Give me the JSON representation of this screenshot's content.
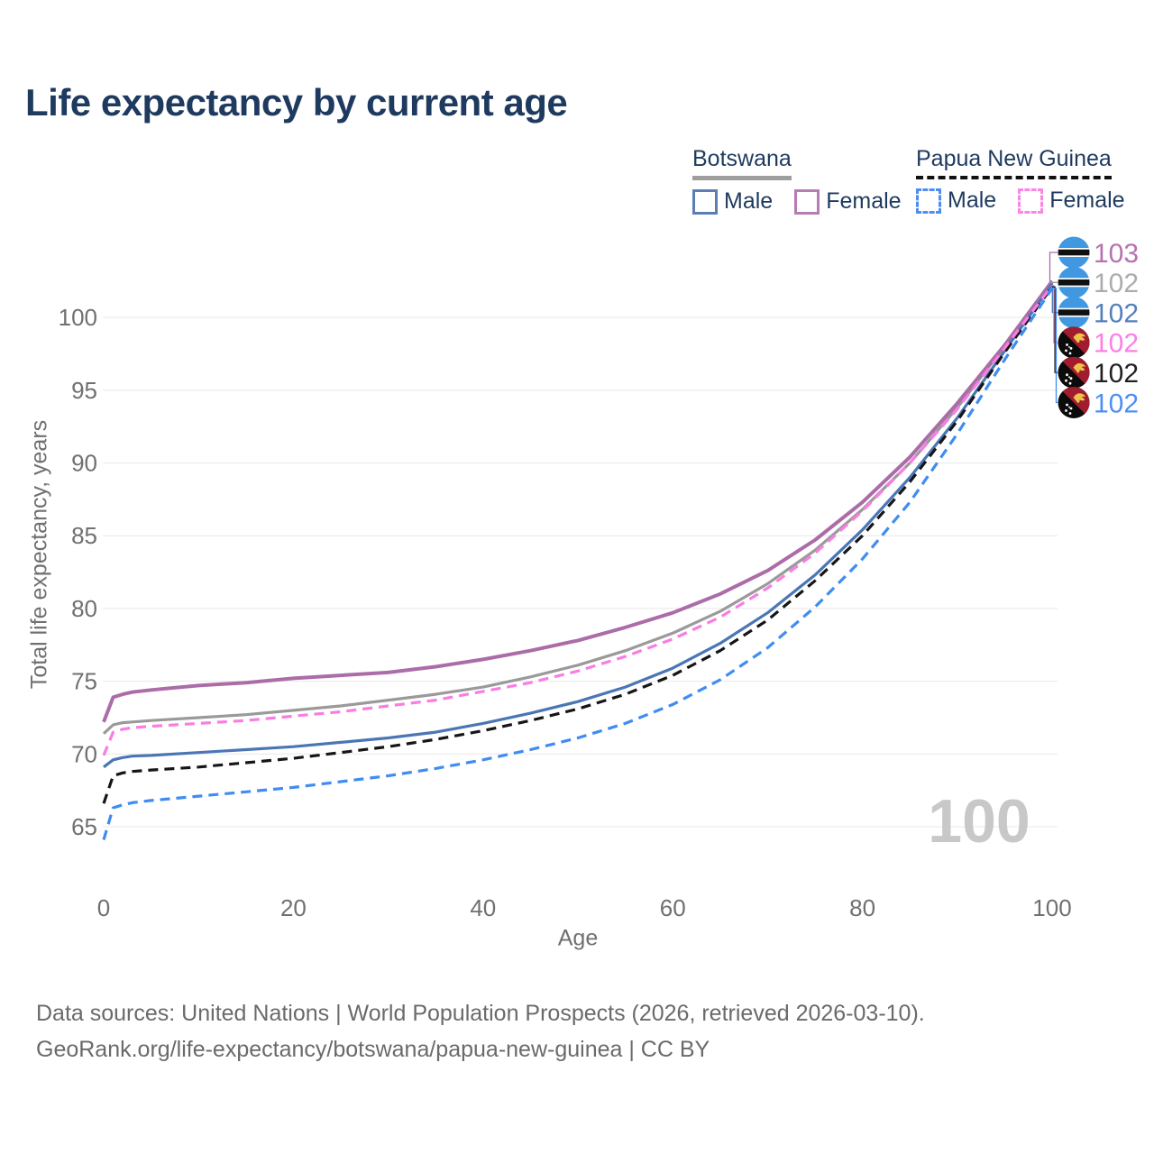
{
  "title": "Life expectancy by current age",
  "legend": {
    "groups": [
      {
        "country": "Botswana",
        "underline": "solid",
        "underline_color": "#9E9E9E",
        "items": [
          {
            "label": "Male",
            "color": "#5B7FB5",
            "dashed": false
          },
          {
            "label": "Female",
            "color": "#B87CB4",
            "dashed": false
          }
        ]
      },
      {
        "country": "Papua New Guinea",
        "underline": "dashed",
        "underline_color": "#111111",
        "items": [
          {
            "label": "Male",
            "color": "#4D8EF3",
            "dashed": true
          },
          {
            "label": "Female",
            "color": "#FB86E8",
            "dashed": true
          }
        ]
      }
    ]
  },
  "chart_data": {
    "type": "line",
    "title": "Life expectancy by current age",
    "xlabel": "Age",
    "ylabel": "Total life expectancy, years",
    "x_ticks": [
      0,
      20,
      40,
      60,
      80,
      100
    ],
    "y_ticks": [
      65,
      70,
      75,
      80,
      85,
      90,
      95,
      100
    ],
    "xlim": [
      0,
      100
    ],
    "ylim": [
      64,
      103
    ],
    "grid": true,
    "legend_position": "top-right",
    "ages": [
      0,
      1,
      2,
      3,
      5,
      10,
      15,
      20,
      25,
      30,
      35,
      40,
      45,
      50,
      55,
      60,
      65,
      70,
      75,
      80,
      85,
      90,
      95,
      100
    ],
    "series": [
      {
        "id": "botswana-female",
        "name": "Botswana Female",
        "country": "Botswana",
        "sex": "Female",
        "style": "solid",
        "color": "#AC6CA8",
        "flag": "bw",
        "end_label": "103",
        "end_label_color": "#B671AE",
        "values": [
          72.2,
          73.9,
          74.1,
          74.25,
          74.4,
          74.7,
          74.9,
          75.2,
          75.4,
          75.6,
          76.0,
          76.5,
          77.1,
          77.8,
          78.7,
          79.7,
          81.0,
          82.6,
          84.7,
          87.3,
          90.4,
          94.1,
          98.1,
          102.5
        ]
      },
      {
        "id": "botswana-total",
        "name": "Botswana Both sexes",
        "country": "Botswana",
        "sex": "Both",
        "style": "solid",
        "color": "#9A9A9A",
        "flag": "bw",
        "end_label": "102",
        "end_label_color": "#ACACAC",
        "values": [
          71.4,
          72.0,
          72.15,
          72.2,
          72.3,
          72.5,
          72.7,
          73.0,
          73.3,
          73.7,
          74.1,
          74.6,
          75.3,
          76.1,
          77.1,
          78.3,
          79.8,
          81.7,
          84.0,
          86.8,
          90.0,
          93.8,
          98.0,
          102.4
        ]
      },
      {
        "id": "botswana-male",
        "name": "Botswana Male",
        "country": "Botswana",
        "sex": "Male",
        "style": "solid",
        "color": "#4A76B5",
        "flag": "bw",
        "end_label": "102",
        "end_label_color": "#5580BC",
        "values": [
          69.1,
          69.6,
          69.75,
          69.85,
          69.9,
          70.1,
          70.3,
          70.5,
          70.8,
          71.1,
          71.5,
          72.1,
          72.8,
          73.6,
          74.6,
          75.9,
          77.6,
          79.7,
          82.3,
          85.4,
          89.0,
          93.1,
          97.7,
          102.3
        ]
      },
      {
        "id": "papua-new-guinea-female",
        "name": "Papua New Guinea Female",
        "country": "Papua New Guinea",
        "sex": "Female",
        "style": "dashed",
        "color": "#F97DE3",
        "flag": "png",
        "end_label": "102",
        "end_label_color": "#FC80E4",
        "values": [
          69.9,
          71.5,
          71.7,
          71.8,
          71.9,
          72.1,
          72.3,
          72.6,
          72.9,
          73.3,
          73.7,
          74.3,
          74.9,
          75.7,
          76.7,
          77.9,
          79.4,
          81.4,
          83.8,
          86.7,
          90.0,
          93.7,
          97.9,
          102.2
        ]
      },
      {
        "id": "papua-new-guinea-total",
        "name": "Papua New Guinea Both sexes",
        "country": "Papua New Guinea",
        "sex": "Both",
        "style": "dashed",
        "color": "#161616",
        "flag": "png",
        "end_label": "102",
        "end_label_color": "#222222",
        "values": [
          66.6,
          68.5,
          68.7,
          68.8,
          68.9,
          69.1,
          69.4,
          69.7,
          70.1,
          70.5,
          71.0,
          71.6,
          72.3,
          73.1,
          74.1,
          75.4,
          77.1,
          79.2,
          81.9,
          85.0,
          88.7,
          92.9,
          97.6,
          102.1
        ]
      },
      {
        "id": "papua-new-guinea-male",
        "name": "Papua New Guinea Male",
        "country": "Papua New Guinea",
        "sex": "Male",
        "style": "dashed",
        "color": "#3F8CF2",
        "flag": "png",
        "end_label": "102",
        "end_label_color": "#4D8FF5",
        "values": [
          64.1,
          66.3,
          66.5,
          66.65,
          66.8,
          67.1,
          67.4,
          67.7,
          68.1,
          68.5,
          69.0,
          69.6,
          70.3,
          71.1,
          72.1,
          73.4,
          75.1,
          77.3,
          80.1,
          83.4,
          87.3,
          92.0,
          97.1,
          102.0
        ]
      }
    ],
    "watermark": "100",
    "flag_colors": {
      "botswana_blue": "#4198E0",
      "botswana_black": "#101010",
      "botswana_white": "#FFFFFF",
      "png_red": "#A01C2E",
      "png_black": "#0B0B0B",
      "png_yellow": "#EFC24A",
      "png_white": "#FFFFFF"
    }
  },
  "watermark": "100",
  "footer": {
    "line1": "Data sources: United Nations | World Population Prospects (2026, retrieved 2026-03-10).",
    "line2": "GeoRank.org/life-expectancy/botswana/papua-new-guinea | CC BY"
  }
}
